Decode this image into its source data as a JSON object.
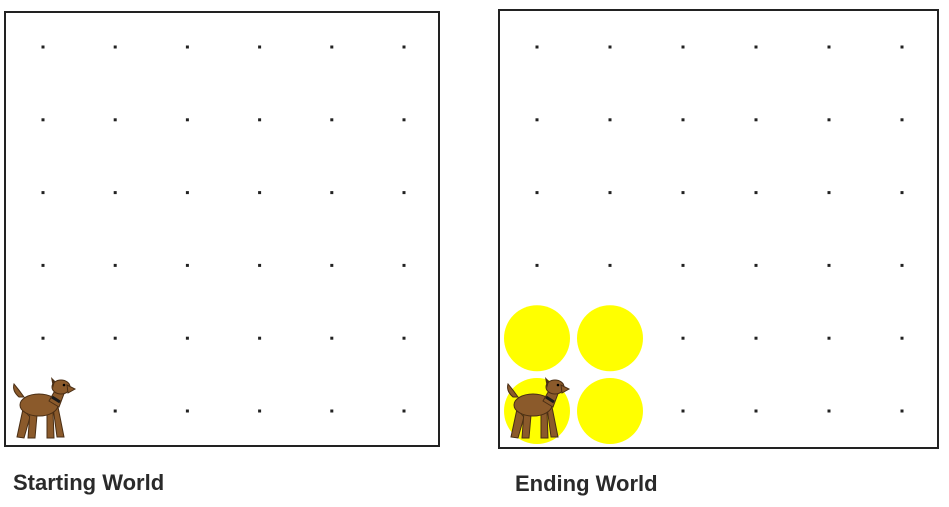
{
  "worlds": [
    {
      "caption": "Starting World",
      "grid": {
        "columns": 6,
        "rows": 6
      },
      "balls": [],
      "dog": {
        "column": 1,
        "row": 1
      }
    },
    {
      "caption": "Ending World",
      "grid": {
        "columns": 6,
        "rows": 6
      },
      "balls": [
        {
          "column": 1,
          "row": 1
        },
        {
          "column": 2,
          "row": 1
        },
        {
          "column": 1,
          "row": 2
        },
        {
          "column": 2,
          "row": 2
        }
      ],
      "dog": {
        "column": 1,
        "row": 1
      }
    }
  ],
  "colors": {
    "ball": "#ffff00",
    "grid_dot": "#222222",
    "border": "#222222",
    "dog_body": "#8b5a2b",
    "dog_dark": "#4a2e14",
    "dog_collar": "#1a1a1a"
  },
  "icons": {
    "dog": "dog-icon",
    "ball": "ball-icon"
  }
}
